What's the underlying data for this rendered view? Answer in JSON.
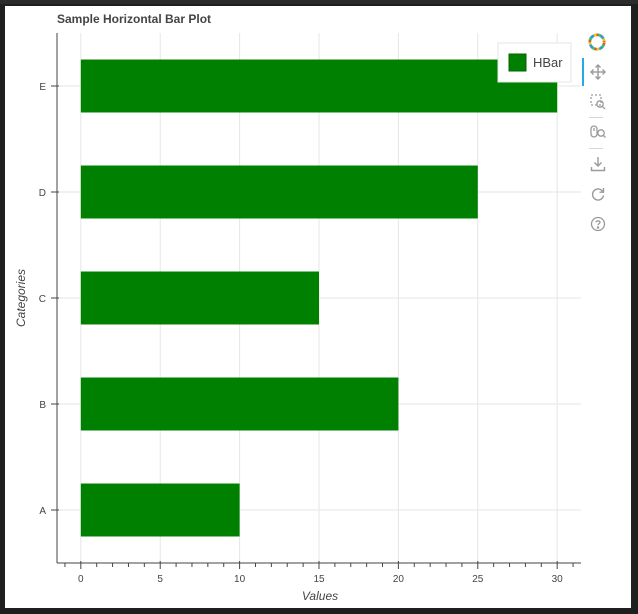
{
  "title": "Sample Horizontal Bar Plot",
  "toolbar": {
    "tools": [
      "bokeh-logo-icon",
      "pan-icon",
      "box-zoom-icon",
      "wheel-zoom-icon",
      "save-icon",
      "reset-icon",
      "help-icon"
    ],
    "active_tool": "pan-icon"
  },
  "colors": {
    "bar": "#008000",
    "grid": "#e6e6e6",
    "axis": "#444444",
    "background": "#ffffff",
    "active_tool": "#26aae1"
  },
  "chart_data": {
    "type": "bar",
    "orientation": "horizontal",
    "title": "Sample Horizontal Bar Plot",
    "categories": [
      "A",
      "B",
      "C",
      "D",
      "E"
    ],
    "series": [
      {
        "name": "HBar",
        "values": [
          10,
          20,
          15,
          25,
          30
        ],
        "color": "#008000"
      }
    ],
    "xlabel": "Values",
    "ylabel": "Categories",
    "xlim": [
      -1.5,
      31.5
    ],
    "xticks": [
      0,
      5,
      10,
      15,
      20,
      25,
      30
    ],
    "bar_height_fraction": 0.5,
    "grid": true,
    "legend_position": "top-right"
  }
}
